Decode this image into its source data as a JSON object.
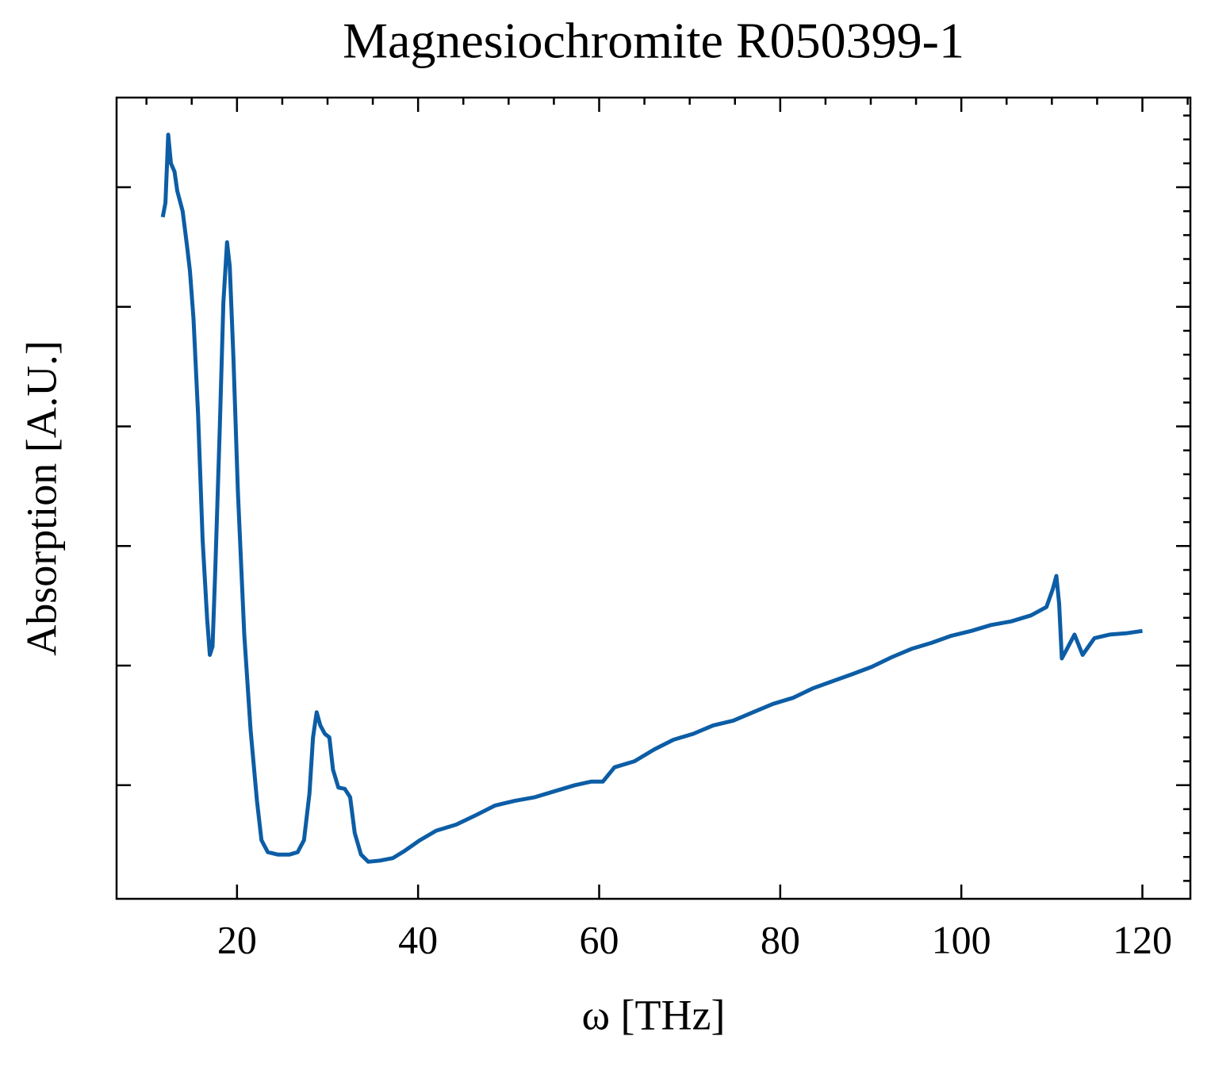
{
  "chart_data": {
    "type": "line",
    "title": "Magnesiochromite R050399-1",
    "x_label": "ω [THz]",
    "y_label": "Absorption [A.U.]",
    "xlim": [
      6.7,
      125.3
    ],
    "ylim": [
      0.05,
      6.75
    ],
    "xticks": [
      20,
      40,
      60,
      80,
      100,
      120
    ],
    "xminorticks": [
      10,
      15,
      25,
      30,
      35,
      45,
      50,
      55,
      65,
      70,
      75,
      85,
      90,
      95,
      105,
      110,
      115,
      125
    ],
    "yticks": [
      1,
      2,
      3,
      4,
      5,
      6
    ],
    "yminorticks": [
      0.2,
      0.4,
      0.6,
      0.8,
      1.2,
      1.4,
      1.6,
      1.8,
      2.2,
      2.4,
      2.6,
      2.8,
      3.2,
      3.4,
      3.6,
      3.8,
      4.2,
      4.4,
      4.6,
      4.8,
      5.2,
      5.4,
      5.6,
      5.8,
      6.2,
      6.4,
      6.6
    ],
    "series": [
      {
        "color": "#0c5da5",
        "x": [
          11.8,
          12.1,
          12.4,
          12.7,
          13.1,
          13.4,
          14.0,
          14.5,
          14.8,
          15.2,
          15.7,
          16.2,
          16.7,
          17.0,
          17.3,
          17.6,
          18.1,
          18.5,
          18.9,
          19.2,
          19.6,
          20.1,
          20.8,
          21.5,
          22.2,
          22.7,
          23.4,
          24.5,
          25.8,
          26.7,
          27.4,
          28.0,
          28.4,
          28.8,
          29.2,
          29.7,
          30.2,
          30.6,
          31.2,
          31.9,
          32.5,
          33.0,
          33.7,
          34.5,
          35.8,
          37.2,
          38.5,
          40.2,
          42.0,
          44.2,
          46.4,
          48.5,
          50.7,
          52.9,
          55.1,
          57.3,
          59.1,
          60.4,
          61.7,
          63.9,
          66.1,
          68.2,
          70.4,
          72.6,
          74.8,
          77.0,
          79.2,
          81.4,
          83.6,
          85.8,
          88.0,
          90.1,
          92.3,
          94.5,
          96.7,
          98.9,
          101.1,
          103.3,
          105.5,
          107.7,
          109.4,
          110.1,
          110.5,
          110.8,
          111.1,
          111.6,
          112.5,
          113.4,
          114.7,
          116.4,
          118.2,
          120.0
        ],
        "values": [
          5.75,
          5.87,
          6.44,
          6.2,
          6.13,
          5.97,
          5.8,
          5.5,
          5.3,
          4.9,
          4.11,
          3.05,
          2.39,
          2.09,
          2.16,
          2.79,
          3.98,
          5.04,
          5.54,
          5.34,
          4.58,
          3.45,
          2.26,
          1.46,
          0.87,
          0.54,
          0.44,
          0.42,
          0.42,
          0.44,
          0.54,
          0.93,
          1.4,
          1.61,
          1.5,
          1.43,
          1.4,
          1.13,
          0.98,
          0.97,
          0.9,
          0.6,
          0.42,
          0.36,
          0.37,
          0.39,
          0.45,
          0.54,
          0.62,
          0.67,
          0.75,
          0.83,
          0.87,
          0.9,
          0.95,
          1.0,
          1.03,
          1.03,
          1.15,
          1.2,
          1.3,
          1.38,
          1.43,
          1.5,
          1.54,
          1.61,
          1.68,
          1.73,
          1.81,
          1.87,
          1.93,
          1.99,
          2.07,
          2.14,
          2.19,
          2.25,
          2.29,
          2.34,
          2.37,
          2.42,
          2.49,
          2.64,
          2.75,
          2.52,
          2.06,
          2.13,
          2.26,
          2.09,
          2.23,
          2.26,
          2.27,
          2.29
        ]
      }
    ]
  }
}
